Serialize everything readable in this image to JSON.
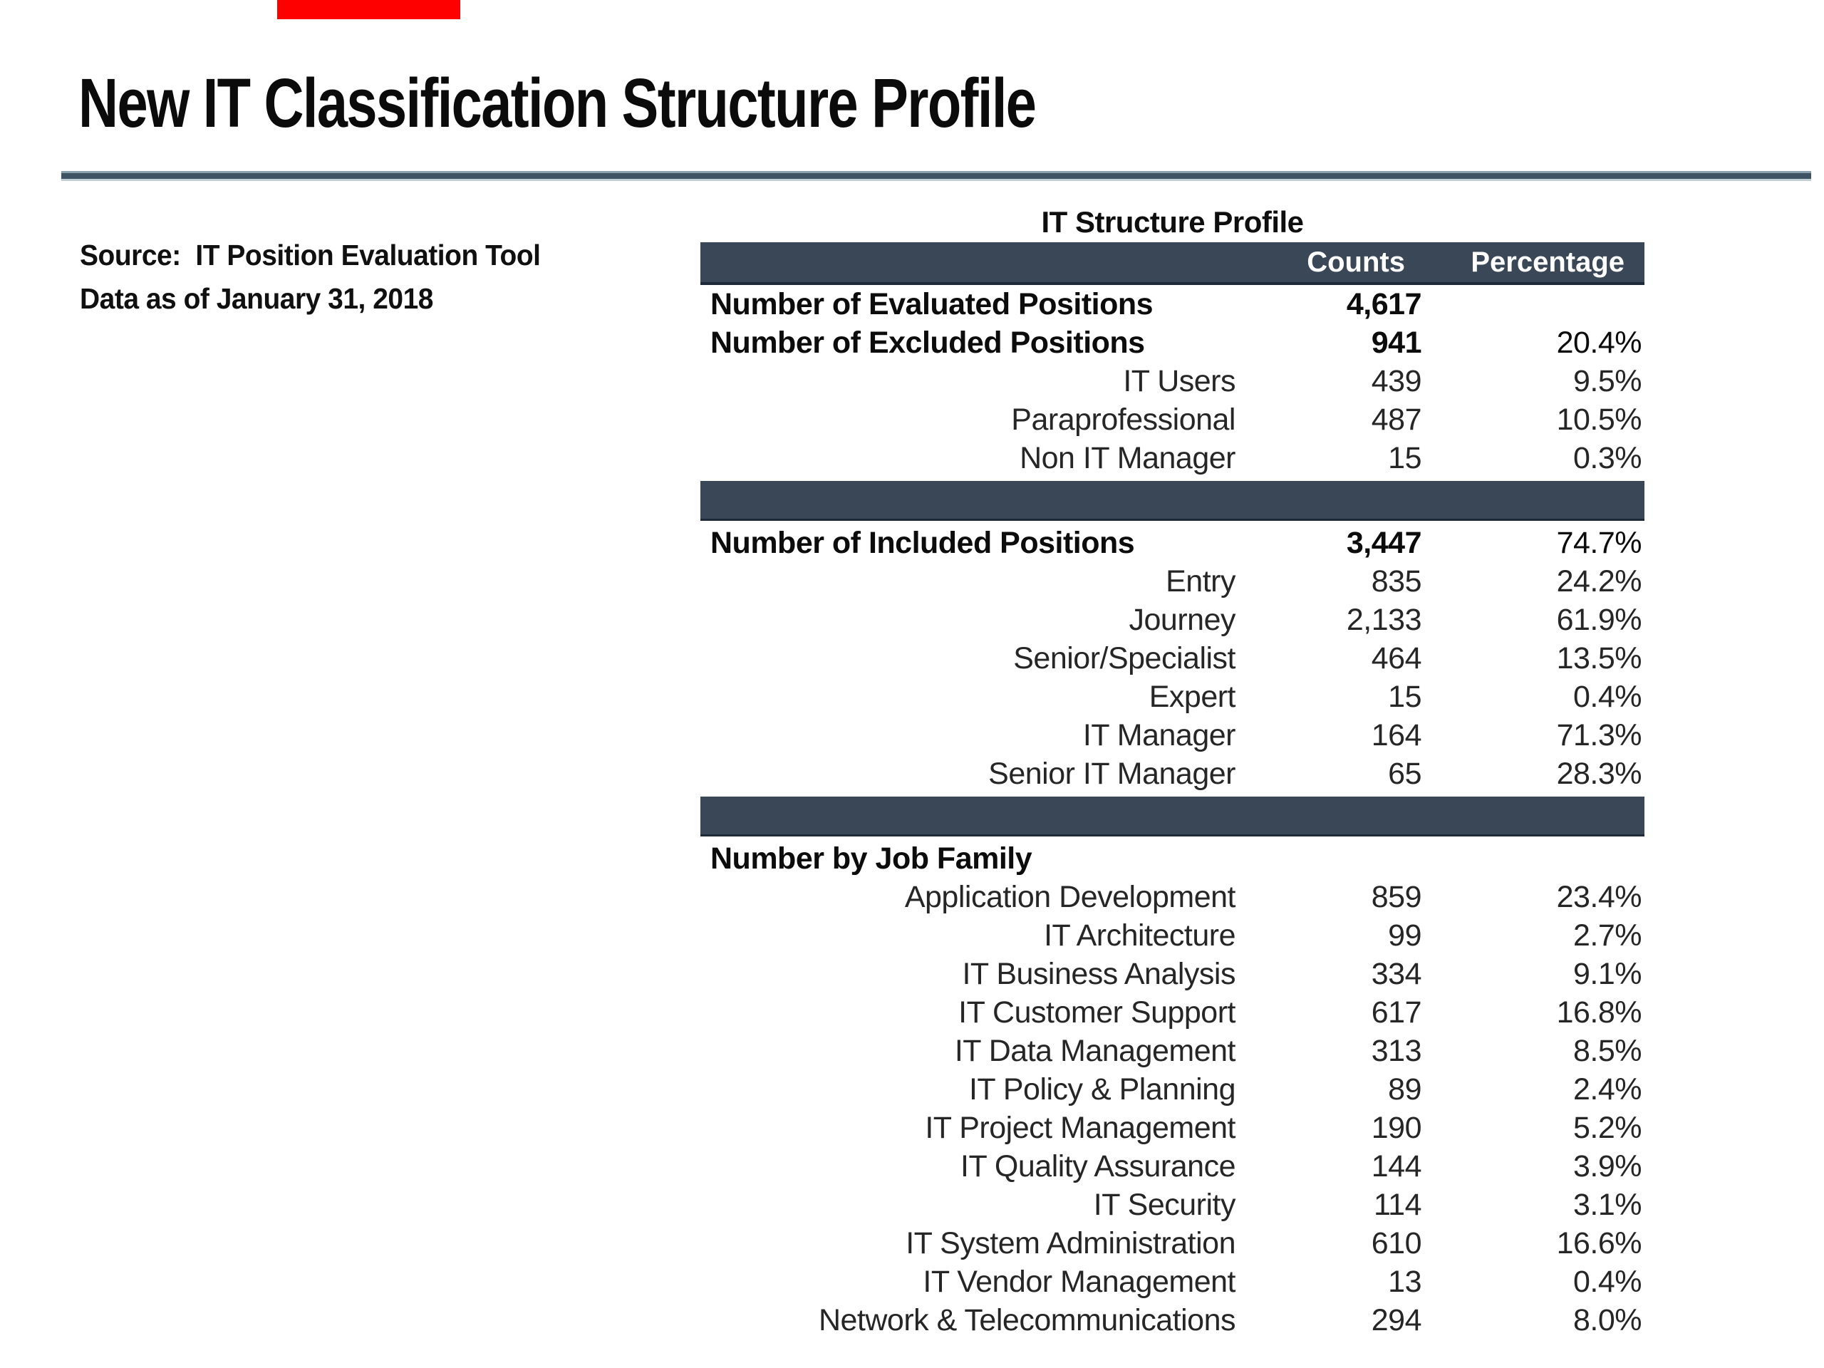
{
  "slide": {
    "title": "New IT Classification Structure Profile",
    "source": {
      "line1": "Source:  IT Position Evaluation Tool",
      "line2": "Data as of January 31, 2018"
    }
  },
  "colors": {
    "accent_dark": "#3a4757",
    "rule": "#3e5363",
    "red_bar": "#ff0000"
  },
  "table": {
    "title": "IT Structure Profile",
    "headers": {
      "counts": "Counts",
      "percentage": "Percentage"
    },
    "rows": [
      {
        "type": "section",
        "label": "Number of Evaluated Positions",
        "count": "4,617",
        "pct": ""
      },
      {
        "type": "section",
        "label": "Number of Excluded Positions",
        "count": "941",
        "pct": "20.4%"
      },
      {
        "type": "sub",
        "label": "IT Users",
        "count": "439",
        "pct": "9.5%"
      },
      {
        "type": "sub",
        "label": "Paraprofessional",
        "count": "487",
        "pct": "10.5%"
      },
      {
        "type": "sub",
        "label": "Non IT Manager",
        "count": "15",
        "pct": "0.3%"
      },
      {
        "type": "separator"
      },
      {
        "type": "section",
        "label": "Number of Included Positions",
        "count": "3,447",
        "pct": "74.7%"
      },
      {
        "type": "sub",
        "label": "Entry",
        "count": "835",
        "pct": "24.2%"
      },
      {
        "type": "sub",
        "label": "Journey",
        "count": "2,133",
        "pct": "61.9%"
      },
      {
        "type": "sub",
        "label": "Senior/Specialist",
        "count": "464",
        "pct": "13.5%"
      },
      {
        "type": "sub",
        "label": "Expert",
        "count": "15",
        "pct": "0.4%"
      },
      {
        "type": "sub",
        "label": "IT Manager",
        "count": "164",
        "pct": "71.3%"
      },
      {
        "type": "sub",
        "label": "Senior IT Manager",
        "count": "65",
        "pct": "28.3%"
      },
      {
        "type": "separator"
      },
      {
        "type": "section",
        "label": "Number by Job Family",
        "count": "",
        "pct": ""
      },
      {
        "type": "sub",
        "label": "Application Development",
        "count": "859",
        "pct": "23.4%"
      },
      {
        "type": "sub",
        "label": "IT Architecture",
        "count": "99",
        "pct": "2.7%"
      },
      {
        "type": "sub",
        "label": "IT Business Analysis",
        "count": "334",
        "pct": "9.1%"
      },
      {
        "type": "sub",
        "label": "IT Customer Support",
        "count": "617",
        "pct": "16.8%"
      },
      {
        "type": "sub",
        "label": "IT Data Management",
        "count": "313",
        "pct": "8.5%"
      },
      {
        "type": "sub",
        "label": "IT Policy & Planning",
        "count": "89",
        "pct": "2.4%"
      },
      {
        "type": "sub",
        "label": "IT Project Management",
        "count": "190",
        "pct": "5.2%"
      },
      {
        "type": "sub",
        "label": "IT Quality Assurance",
        "count": "144",
        "pct": "3.9%"
      },
      {
        "type": "sub",
        "label": "IT Security",
        "count": "114",
        "pct": "3.1%"
      },
      {
        "type": "sub",
        "label": "IT System Administration",
        "count": "610",
        "pct": "16.6%"
      },
      {
        "type": "sub",
        "label": "IT Vendor Management",
        "count": "13",
        "pct": "0.4%"
      },
      {
        "type": "sub",
        "label": "Network & Telecommunications",
        "count": "294",
        "pct": "8.0%"
      }
    ]
  }
}
